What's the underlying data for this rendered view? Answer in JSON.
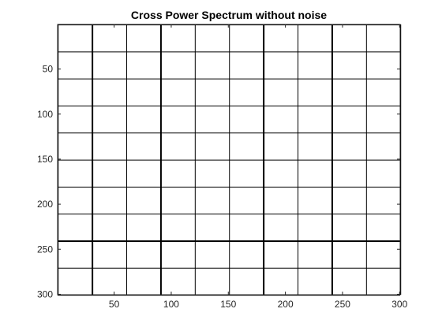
{
  "chart_data": {
    "type": "heatmap",
    "title": "Cross Power Spectrum without noise",
    "xlabel": "",
    "ylabel": "",
    "xlim": [
      0.5,
      300.5
    ],
    "ylim": [
      0.5,
      300.5
    ],
    "y_direction": "reverse",
    "x_ticks": [
      50,
      100,
      150,
      200,
      250,
      300
    ],
    "y_ticks": [
      50,
      100,
      150,
      200,
      250,
      300
    ],
    "x_tick_labels": [
      "50",
      "100",
      "150",
      "200",
      "250",
      "300"
    ],
    "y_tick_labels": [
      "50",
      "100",
      "150",
      "200",
      "250",
      "300"
    ],
    "grid_x": [
      1,
      31,
      61,
      91,
      121,
      151,
      181,
      211,
      241,
      271,
      301
    ],
    "grid_y": [
      1,
      31,
      61,
      91,
      121,
      151,
      181,
      211,
      241,
      271,
      301
    ],
    "strong_lines_x": [
      31,
      91,
      181,
      241
    ],
    "strong_lines_y": [
      241
    ],
    "background_color": "#ffffff",
    "line_color": "#000000"
  }
}
